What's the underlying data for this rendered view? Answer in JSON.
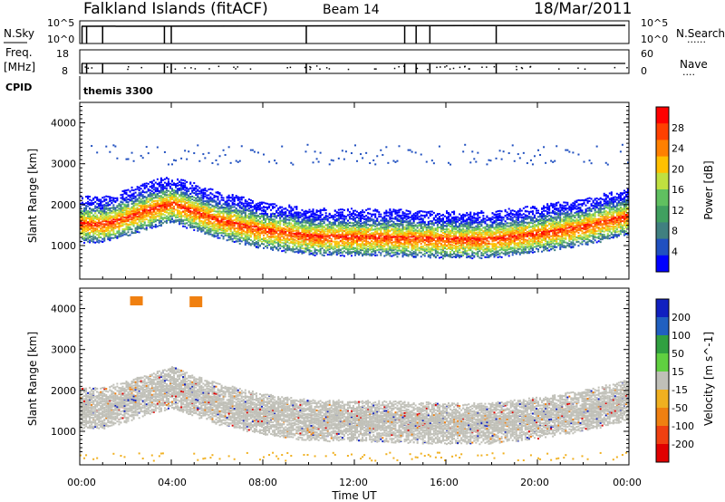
{
  "header": {
    "station": "Falkland Islands (fitACF)",
    "beam": "Beam 14",
    "date": "18/Mar/2011"
  },
  "noise_panel": {
    "left_label": "N.Sky",
    "left_ticks": [
      "10^5",
      "10^0"
    ],
    "right_ticks": [
      "10^5",
      "10^0"
    ],
    "right_label": "N.Search",
    "right_legend": "......"
  },
  "freq_panel": {
    "left_label_1": "Freq.",
    "left_label_2": "[MHz]",
    "left_ticks": [
      "18",
      "8"
    ],
    "right_ticks": [
      "60",
      "0"
    ],
    "right_label": "Nave",
    "right_legend": "...."
  },
  "cpid": {
    "label": "CPID",
    "program": "themis 3300"
  },
  "power_panel": {
    "ylabel": "Slant Range [km]",
    "yticks": [
      "4000",
      "3000",
      "2000",
      "1000"
    ],
    "colorbar_label": "Power [dB]",
    "colorbar_ticks": [
      "28",
      "24",
      "20",
      "16",
      "12",
      "8",
      "4"
    ],
    "colorbar_colors": [
      "#ff0000",
      "#ff4000",
      "#ff8000",
      "#ffc000",
      "#c0e040",
      "#60c060",
      "#40a060",
      "#408080",
      "#2050c0",
      "#0000ff"
    ]
  },
  "velocity_panel": {
    "ylabel": "Slant Range [km]",
    "yticks": [
      "4000",
      "3000",
      "2000",
      "1000"
    ],
    "colorbar_label": "Velocity [m s^-1]",
    "colorbar_ticks": [
      "200",
      "100",
      "50",
      "15",
      "-15",
      "-50",
      "-100",
      "-200"
    ],
    "colorbar_colors": [
      "#1020c0",
      "#2060c0",
      "#30a040",
      "#60d040",
      "#c0c0b8",
      "#f0b020",
      "#f08010",
      "#f04010",
      "#e00000"
    ]
  },
  "xaxis": {
    "label": "Time UT",
    "ticks": [
      "00:00",
      "04:00",
      "08:00",
      "12:00",
      "16:00",
      "20:00",
      "00:00"
    ]
  },
  "chart_data": [
    {
      "type": "heatmap",
      "title": "Falkland Islands (fitACF) Beam 14 18/Mar/2011",
      "quantity": "Power",
      "xlabel": "Time UT",
      "ylabel": "Slant Range [km]",
      "xlim": [
        0,
        24
      ],
      "ylim": [
        180,
        4500
      ],
      "colorbar": "Power [dB]",
      "colorbar_range": [
        0,
        32
      ],
      "bands": [
        {
          "name": "ionospheric echo band centre",
          "x": [
            1,
            2,
            3,
            4,
            6,
            8,
            10,
            12,
            14,
            16,
            18,
            20,
            22,
            24
          ],
          "y": [
            1600,
            1750,
            1950,
            2100,
            1700,
            1450,
            1300,
            1280,
            1260,
            1220,
            1230,
            1360,
            1530,
            1800
          ]
        }
      ],
      "peak_power_db": 30
    },
    {
      "type": "heatmap",
      "title": "Falkland Islands (fitACF) Beam 14 18/Mar/2011",
      "quantity": "Velocity",
      "xlabel": "Time UT",
      "ylabel": "Slant Range [km]",
      "xlim": [
        0,
        24
      ],
      "ylim": [
        180,
        4500
      ],
      "colorbar": "Velocity [m s^-1]",
      "colorbar_range": [
        -200,
        200
      ],
      "dominant_value_range": [
        -15,
        15
      ]
    }
  ]
}
